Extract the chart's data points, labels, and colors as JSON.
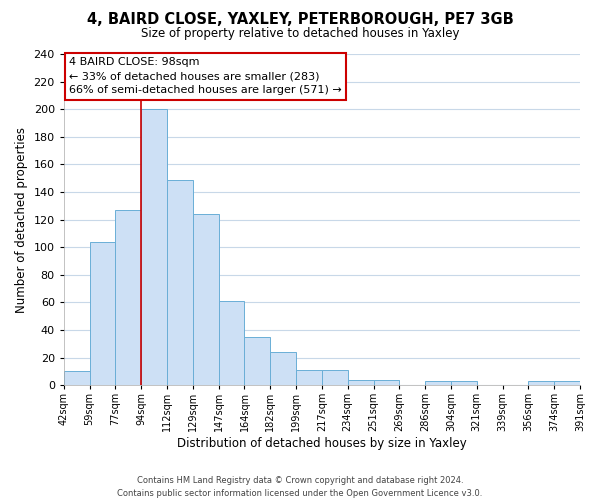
{
  "title": "4, BAIRD CLOSE, YAXLEY, PETERBOROUGH, PE7 3GB",
  "subtitle": "Size of property relative to detached houses in Yaxley",
  "xlabel": "Distribution of detached houses by size in Yaxley",
  "ylabel": "Number of detached properties",
  "bin_labels": [
    "42sqm",
    "59sqm",
    "77sqm",
    "94sqm",
    "112sqm",
    "129sqm",
    "147sqm",
    "164sqm",
    "182sqm",
    "199sqm",
    "217sqm",
    "234sqm",
    "251sqm",
    "269sqm",
    "286sqm",
    "304sqm",
    "321sqm",
    "339sqm",
    "356sqm",
    "374sqm",
    "391sqm"
  ],
  "bar_heights": [
    10,
    104,
    127,
    200,
    149,
    124,
    61,
    35,
    24,
    11,
    11,
    4,
    4,
    0,
    3,
    3,
    0,
    0,
    3,
    3
  ],
  "bar_color": "#cde0f5",
  "bar_edge_color": "#6aaed6",
  "vline_x": 3,
  "vline_color": "#cc0000",
  "ylim": [
    0,
    240
  ],
  "yticks": [
    0,
    20,
    40,
    60,
    80,
    100,
    120,
    140,
    160,
    180,
    200,
    220,
    240
  ],
  "annotation_title": "4 BAIRD CLOSE: 98sqm",
  "annotation_line1": "← 33% of detached houses are smaller (283)",
  "annotation_line2": "66% of semi-detached houses are larger (571) →",
  "annotation_box_color": "#ffffff",
  "annotation_box_edge": "#cc0000",
  "footer1": "Contains HM Land Registry data © Crown copyright and database right 2024.",
  "footer2": "Contains public sector information licensed under the Open Government Licence v3.0.",
  "background_color": "#ffffff",
  "grid_color": "#c8d8e8"
}
